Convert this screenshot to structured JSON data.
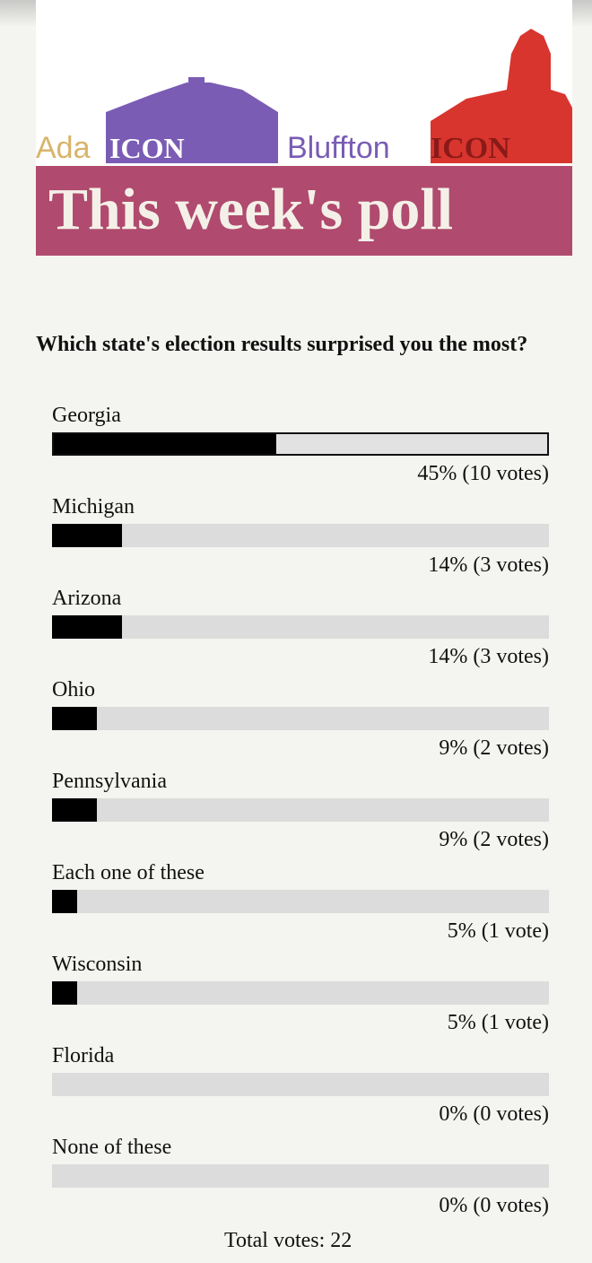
{
  "header": {
    "left_logo": {
      "ada": "Ada",
      "icon": "ICON"
    },
    "right_logo": {
      "bluffton": "Bluffton",
      "icon": "ICON"
    },
    "banner": "This week's poll"
  },
  "poll": {
    "question": "Which state's election results surprised you the most?",
    "options": [
      {
        "name": "Georgia",
        "percent": 45,
        "label": "45% (10 votes)"
      },
      {
        "name": "Michigan",
        "percent": 14,
        "label": "14% (3 votes)"
      },
      {
        "name": "Arizona",
        "percent": 14,
        "label": "14% (3 votes)"
      },
      {
        "name": "Ohio",
        "percent": 9,
        "label": "9% (2 votes)"
      },
      {
        "name": "Pennsylvania",
        "percent": 9,
        "label": "9% (2 votes)"
      },
      {
        "name": "Each one of these",
        "percent": 5,
        "label": "5% (1 vote)"
      },
      {
        "name": "Wisconsin",
        "percent": 5,
        "label": "5% (1 vote)"
      },
      {
        "name": "Florida",
        "percent": 0,
        "label": "0% (0 votes)"
      },
      {
        "name": "None of these",
        "percent": 0,
        "label": "0% (0 votes)"
      }
    ],
    "total": "Total votes: 22"
  }
}
